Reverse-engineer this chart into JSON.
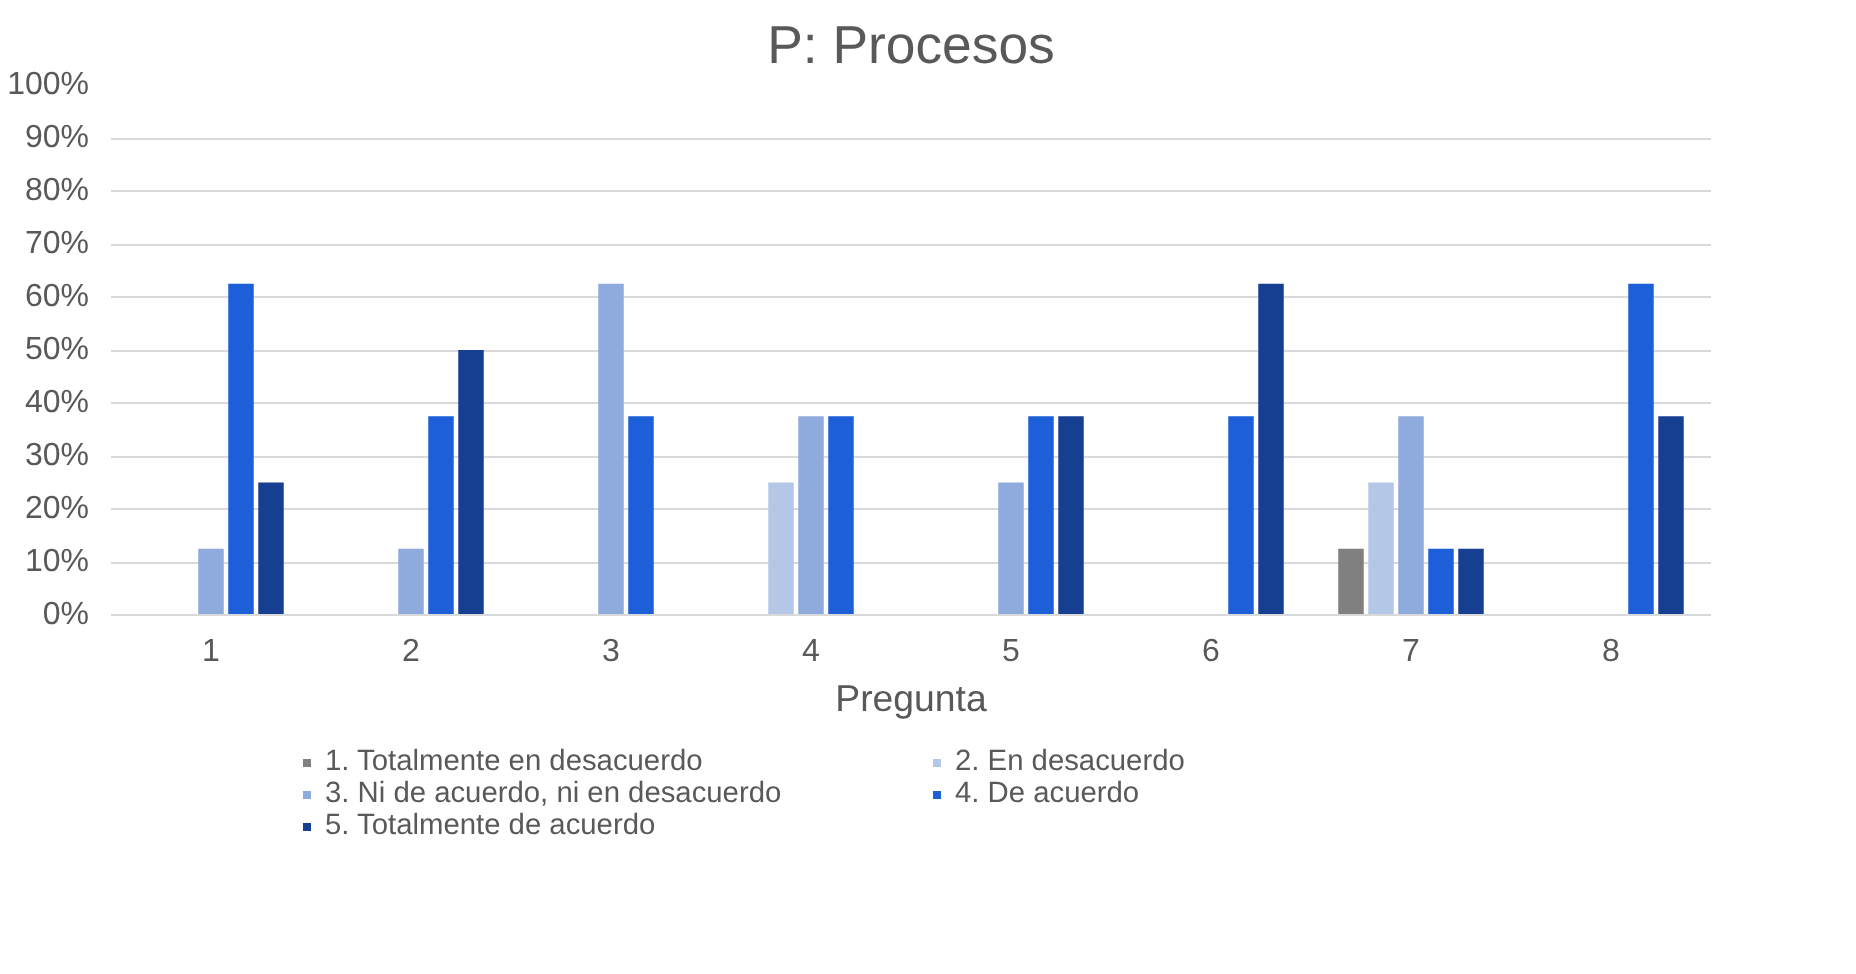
{
  "chart_data": {
    "type": "bar",
    "title": "P: Procesos",
    "xlabel": "Pregunta",
    "categories": [
      "1",
      "2",
      "3",
      "4",
      "5",
      "6",
      "7",
      "8"
    ],
    "series": [
      {
        "name": "1. Totalmente en desacuerdo",
        "color": "#808080",
        "values": [
          0,
          0,
          0,
          0,
          0,
          0,
          12.5,
          0
        ]
      },
      {
        "name": "2. En desacuerdo",
        "color": "#b4c7e7",
        "values": [
          0,
          0,
          0,
          25,
          0,
          0,
          25,
          0
        ]
      },
      {
        "name": "3. Ni de acuerdo, ni en desacuerdo",
        "color": "#8faadc",
        "values": [
          12.5,
          12.5,
          62.5,
          37.5,
          25,
          0,
          37.5,
          0
        ]
      },
      {
        "name": "4. De acuerdo",
        "color": "#1c5fd8",
        "values": [
          62.5,
          37.5,
          37.5,
          37.5,
          37.5,
          37.5,
          12.5,
          62.5
        ]
      },
      {
        "name": "5. Totalmente de acuerdo",
        "color": "#173f91",
        "values": [
          25,
          50,
          0,
          0,
          37.5,
          62.5,
          12.5,
          37.5
        ]
      }
    ],
    "ylim": [
      0,
      100
    ],
    "yticks": [
      {
        "value": 0,
        "label": "0%"
      },
      {
        "value": 10,
        "label": "10%"
      },
      {
        "value": 20,
        "label": "20%"
      },
      {
        "value": 30,
        "label": "30%"
      },
      {
        "value": 40,
        "label": "40%"
      },
      {
        "value": 50,
        "label": "50%"
      },
      {
        "value": 60,
        "label": "60%"
      },
      {
        "value": 70,
        "label": "70%"
      },
      {
        "value": 80,
        "label": "80%"
      },
      {
        "value": 90,
        "label": "90%"
      },
      {
        "value": 100,
        "label": "100%"
      }
    ],
    "grid": "y",
    "legend": "bottom"
  }
}
